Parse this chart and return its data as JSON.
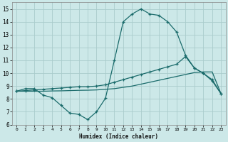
{
  "xlabel": "Humidex (Indice chaleur)",
  "bg_color": "#cce8e8",
  "grid_color": "#aacccc",
  "line_color": "#1a6b6b",
  "xlim": [
    -0.5,
    23.5
  ],
  "ylim": [
    6,
    15.5
  ],
  "xticks": [
    0,
    1,
    2,
    3,
    4,
    5,
    6,
    7,
    8,
    9,
    10,
    11,
    12,
    13,
    14,
    15,
    16,
    17,
    18,
    19,
    20,
    21,
    22,
    23
  ],
  "yticks": [
    6,
    7,
    8,
    9,
    10,
    11,
    12,
    13,
    14,
    15
  ],
  "series1_x": [
    0,
    1,
    2,
    3,
    4,
    5,
    6,
    7,
    8,
    9,
    10,
    11,
    12,
    13,
    14,
    15,
    16,
    17,
    18,
    19,
    20,
    21,
    22,
    23
  ],
  "series1_y": [
    8.6,
    8.8,
    8.8,
    8.3,
    8.1,
    7.5,
    6.9,
    6.8,
    6.4,
    7.0,
    8.05,
    11.0,
    14.0,
    14.6,
    15.0,
    14.6,
    14.5,
    14.0,
    13.2,
    11.4,
    10.4,
    10.0,
    9.4,
    8.4
  ],
  "series2_x": [
    0,
    1,
    2,
    3,
    4,
    5,
    6,
    7,
    8,
    9,
    10,
    11,
    12,
    13,
    14,
    15,
    16,
    17,
    18,
    19,
    20,
    21,
    22,
    23
  ],
  "series2_y": [
    8.6,
    8.65,
    8.7,
    8.75,
    8.8,
    8.85,
    8.9,
    8.95,
    8.95,
    9.0,
    9.1,
    9.3,
    9.5,
    9.7,
    9.9,
    10.1,
    10.3,
    10.5,
    10.7,
    11.3,
    10.4,
    10.0,
    9.5,
    8.4
  ],
  "series3_x": [
    0,
    1,
    2,
    3,
    4,
    5,
    6,
    7,
    8,
    9,
    10,
    11,
    12,
    13,
    14,
    15,
    16,
    17,
    18,
    19,
    20,
    21,
    22,
    23
  ],
  "series3_y": [
    8.6,
    8.6,
    8.6,
    8.6,
    8.62,
    8.63,
    8.65,
    8.67,
    8.68,
    8.7,
    8.75,
    8.8,
    8.9,
    9.0,
    9.15,
    9.3,
    9.45,
    9.6,
    9.75,
    9.9,
    10.05,
    10.1,
    10.1,
    8.4
  ]
}
